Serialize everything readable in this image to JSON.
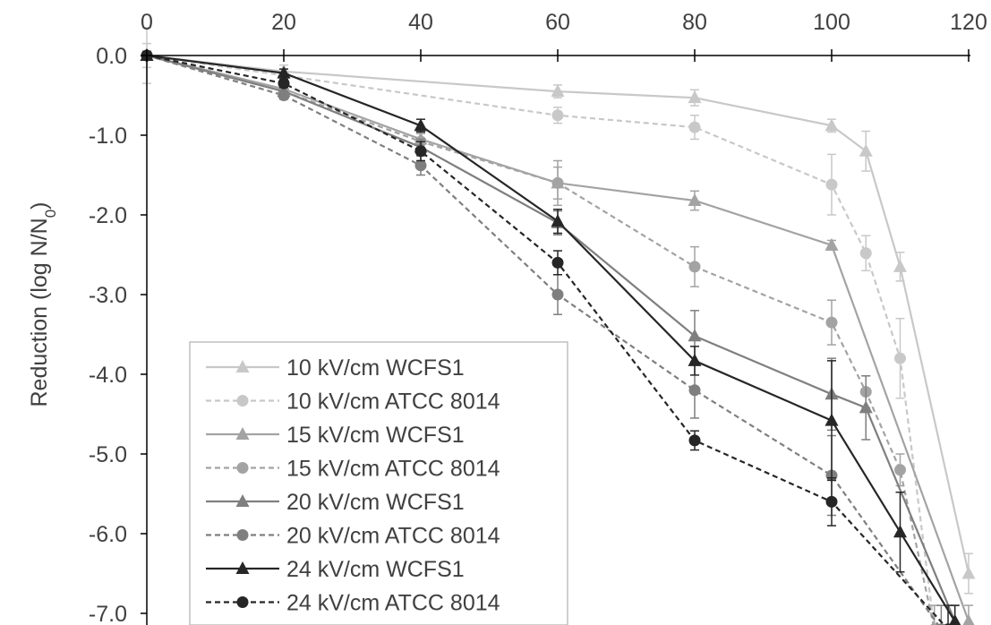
{
  "chart_data": {
    "type": "line",
    "title": "",
    "xlabel": "",
    "ylabel_main": "Reduction (log N/N",
    "ylabel_sub": "0",
    "ylabel_end": ")",
    "xlim": [
      0,
      120
    ],
    "ylim": [
      -7.0,
      0.0
    ],
    "x_ticks": [
      0,
      20,
      40,
      60,
      80,
      100,
      120
    ],
    "x_tick_labels": [
      "0",
      "20",
      "40",
      "60",
      "80",
      "100",
      "120"
    ],
    "y_ticks": [
      0,
      -1,
      -2,
      -3,
      -4,
      -5,
      -6,
      -7
    ],
    "y_tick_labels": [
      "0.0",
      "-1.0",
      "-2.0",
      "-3.0",
      "-4.0",
      "-5.0",
      "-6.0",
      "-7.0"
    ],
    "x_axis_position": "top",
    "grid": false,
    "legend_position": "bottom-left",
    "series": [
      {
        "name": "10 kV/cm WCFS1",
        "color": "#c8c8c8",
        "marker": "triangle",
        "dash": false,
        "x": [
          0,
          20,
          60,
          80,
          100,
          105,
          110,
          120
        ],
        "y": [
          0.0,
          -0.2,
          -0.45,
          -0.53,
          -0.88,
          -1.2,
          -2.65,
          -6.5
        ],
        "err": [
          0.15,
          0.08,
          0.08,
          0.1,
          0.08,
          0.25,
          0.18,
          0.25
        ]
      },
      {
        "name": "10 kV/cm ATCC 8014",
        "color": "#c8c8c8",
        "marker": "circle",
        "dash": true,
        "x": [
          0,
          20,
          60,
          80,
          100,
          105,
          110,
          115
        ],
        "y": [
          0.0,
          -0.25,
          -0.75,
          -0.9,
          -1.62,
          -2.48,
          -3.8,
          -7.2
        ],
        "err": [
          0.35,
          0.08,
          0.1,
          0.15,
          0.38,
          0.22,
          0.5,
          0.3
        ]
      },
      {
        "name": "15 kV/cm WCFS1",
        "color": "#a3a3a3",
        "marker": "triangle",
        "dash": false,
        "x": [
          0,
          20,
          40,
          60,
          80,
          100,
          120
        ],
        "y": [
          0.0,
          -0.42,
          -1.05,
          -1.6,
          -1.82,
          -2.38,
          -7.1
        ],
        "err": [
          0.05,
          0.05,
          0.1,
          0.28,
          0.12,
          0.06,
          0.2
        ]
      },
      {
        "name": "15 kV/cm ATCC 8014",
        "color": "#a3a3a3",
        "marker": "circle",
        "dash": true,
        "x": [
          0,
          20,
          40,
          60,
          80,
          100,
          105,
          110,
          115
        ],
        "y": [
          0.0,
          -0.45,
          -1.08,
          -1.6,
          -2.65,
          -3.35,
          -4.22,
          -5.2,
          -7.2
        ],
        "err": [
          0.05,
          0.05,
          0.1,
          0.2,
          0.25,
          0.28,
          0.2,
          0.2,
          0.3
        ]
      },
      {
        "name": "20 kV/cm WCFS1",
        "color": "#7f7f7f",
        "marker": "triangle",
        "dash": false,
        "x": [
          0,
          20,
          40,
          60,
          80,
          100,
          105,
          118
        ],
        "y": [
          0.0,
          -0.45,
          -1.15,
          -2.1,
          -3.52,
          -4.25,
          -4.42,
          -7.1
        ],
        "err": [
          0.05,
          0.05,
          0.1,
          0.15,
          0.32,
          0.45,
          0.4,
          0.2
        ]
      },
      {
        "name": "20 kV/cm ATCC 8014",
        "color": "#7f7f7f",
        "marker": "circle",
        "dash": true,
        "x": [
          0,
          20,
          40,
          60,
          80,
          100,
          116
        ],
        "y": [
          0.0,
          -0.5,
          -1.38,
          -3.0,
          -4.2,
          -5.27,
          -7.2
        ],
        "err": [
          0.05,
          0.05,
          0.12,
          0.25,
          0.35,
          0.5,
          0.3
        ]
      },
      {
        "name": "24 kV/cm WCFS1",
        "color": "#262626",
        "marker": "triangle",
        "dash": false,
        "x": [
          0,
          20,
          40,
          60,
          80,
          100,
          110,
          118
        ],
        "y": [
          0.0,
          -0.22,
          -0.88,
          -2.08,
          -3.83,
          -4.58,
          -5.98,
          -7.1
        ],
        "err": [
          0.05,
          0.05,
          0.08,
          0.15,
          0.18,
          0.75,
          0.5,
          0.2
        ]
      },
      {
        "name": "24 kV/cm ATCC 8014",
        "color": "#262626",
        "marker": "circle",
        "dash": true,
        "x": [
          0,
          20,
          40,
          60,
          80,
          100,
          117
        ],
        "y": [
          0.0,
          -0.35,
          -1.2,
          -2.6,
          -4.83,
          -5.6,
          -7.2
        ],
        "err": [
          0.05,
          0.05,
          0.12,
          0.15,
          0.12,
          0.3,
          0.3
        ]
      }
    ]
  }
}
